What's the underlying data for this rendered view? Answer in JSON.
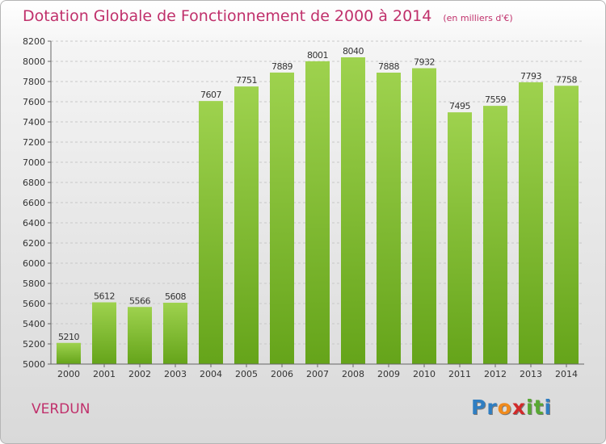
{
  "title": "Dotation Globale de Fonctionnement de 2000 à 2014",
  "unit_note": "(en milliers d'€)",
  "commune": "VERDUN",
  "logo": {
    "letters": [
      "P",
      "r",
      "o",
      "x",
      "i",
      "t",
      "i"
    ],
    "colors": [
      "#2f7ec2",
      "#2f7ec2",
      "#f08a1c",
      "#d12a2a",
      "#58a833",
      "#58a833",
      "#2f7ec2"
    ]
  },
  "colors": {
    "title": "#c0306b",
    "bar_light": "#9ed24e",
    "bar_dark": "#65a41a",
    "grid": "#c8c8c8",
    "axis_text": "#333333"
  },
  "chart_data": {
    "type": "bar",
    "categories": [
      "2000",
      "2001",
      "2002",
      "2003",
      "2004",
      "2005",
      "2006",
      "2007",
      "2008",
      "2009",
      "2010",
      "2011",
      "2012",
      "2013",
      "2014"
    ],
    "values": [
      5210,
      5612,
      5566,
      5608,
      7607,
      7751,
      7889,
      8001,
      8040,
      7888,
      7932,
      7495,
      7559,
      7793,
      7758
    ],
    "data_labels": [
      "5210",
      "5612",
      "5566",
      "5608",
      "7607",
      "7751",
      "7889",
      "8001",
      "8040",
      "7888",
      "7932",
      "7495",
      "7559",
      "7793",
      "7758"
    ],
    "ylim": [
      5000,
      8200
    ],
    "yticks": [
      5000,
      5200,
      5400,
      5600,
      5800,
      6000,
      6200,
      6400,
      6600,
      6800,
      7000,
      7200,
      7400,
      7600,
      7800,
      8000,
      8200
    ],
    "grid": true,
    "xlabel": "",
    "ylabel": ""
  }
}
